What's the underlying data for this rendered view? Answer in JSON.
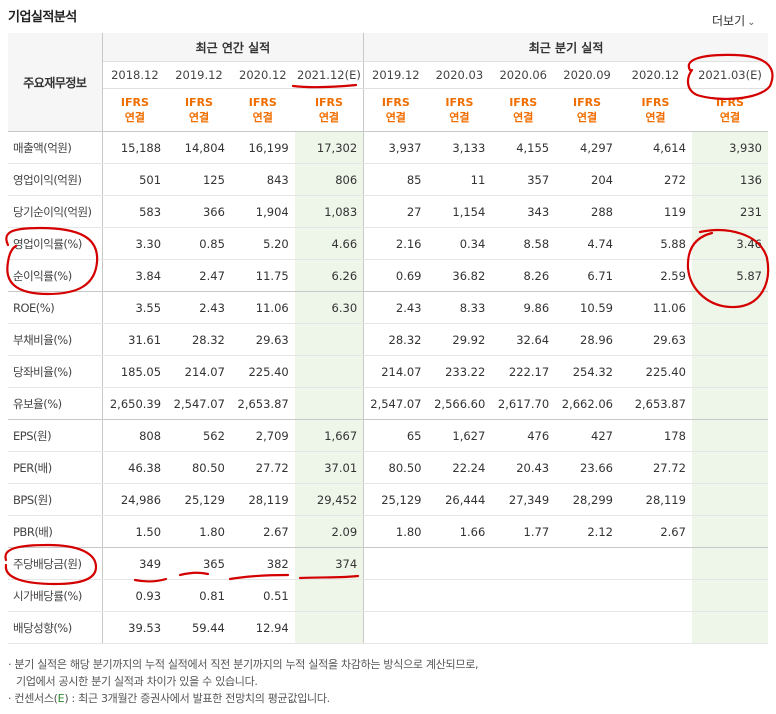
{
  "section_title": "기업실적분석",
  "more_label": "더보기",
  "more_icon": "chevron-down-icon",
  "header": {
    "row_header": "주요재무정보",
    "annual_group": "최근 연간 실적",
    "quarter_group": "최근 분기 실적",
    "annual_periods": [
      "2018.12",
      "2019.12",
      "2020.12",
      "2021.12(E)"
    ],
    "quarter_periods": [
      "2019.12",
      "2020.03",
      "2020.06",
      "2020.09",
      "2020.12",
      "2021.03(E)"
    ],
    "basis_line1": "IFRS",
    "basis_line2": "연결"
  },
  "rows": [
    {
      "label": "매출액(억원)",
      "values": [
        "15,188",
        "14,804",
        "16,199",
        "17,302",
        "3,937",
        "3,133",
        "4,155",
        "4,297",
        "4,614",
        "3,930"
      ]
    },
    {
      "label": "영업이익(억원)",
      "values": [
        "501",
        "125",
        "843",
        "806",
        "85",
        "11",
        "357",
        "204",
        "272",
        "136"
      ]
    },
    {
      "label": "당기순이익(억원)",
      "values": [
        "583",
        "366",
        "1,904",
        "1,083",
        "27",
        "1,154",
        "343",
        "288",
        "119",
        "231"
      ]
    },
    {
      "label": "영업이익률(%)",
      "values": [
        "3.30",
        "0.85",
        "5.20",
        "4.66",
        "2.16",
        "0.34",
        "8.58",
        "4.74",
        "5.88",
        "3.46"
      ]
    },
    {
      "label": "순이익률(%)",
      "values": [
        "3.84",
        "2.47",
        "11.75",
        "6.26",
        "0.69",
        "36.82",
        "8.26",
        "6.71",
        "2.59",
        "5.87"
      ]
    },
    {
      "label": "ROE(%)",
      "values": [
        "3.55",
        "2.43",
        "11.06",
        "6.30",
        "2.43",
        "8.33",
        "9.86",
        "10.59",
        "11.06",
        ""
      ]
    },
    {
      "label": "부채비율(%)",
      "values": [
        "31.61",
        "28.32",
        "29.63",
        "",
        "28.32",
        "29.92",
        "32.64",
        "28.96",
        "29.63",
        ""
      ]
    },
    {
      "label": "당좌비율(%)",
      "values": [
        "185.05",
        "214.07",
        "225.40",
        "",
        "214.07",
        "233.22",
        "222.17",
        "254.32",
        "225.40",
        ""
      ]
    },
    {
      "label": "유보율(%)",
      "values": [
        "2,650.39",
        "2,547.07",
        "2,653.87",
        "",
        "2,547.07",
        "2,566.60",
        "2,617.70",
        "2,662.06",
        "2,653.87",
        ""
      ]
    },
    {
      "label": "EPS(원)",
      "values": [
        "808",
        "562",
        "2,709",
        "1,667",
        "65",
        "1,627",
        "476",
        "427",
        "178",
        ""
      ]
    },
    {
      "label": "PER(배)",
      "values": [
        "46.38",
        "80.50",
        "27.72",
        "37.01",
        "80.50",
        "22.24",
        "20.43",
        "23.66",
        "27.72",
        ""
      ]
    },
    {
      "label": "BPS(원)",
      "values": [
        "24,986",
        "25,129",
        "28,119",
        "29,452",
        "25,129",
        "26,444",
        "27,349",
        "28,299",
        "28,119",
        ""
      ]
    },
    {
      "label": "PBR(배)",
      "values": [
        "1.50",
        "1.80",
        "2.67",
        "2.09",
        "1.80",
        "1.66",
        "1.77",
        "2.12",
        "2.67",
        ""
      ]
    },
    {
      "label": "주당배당금(원)",
      "values": [
        "349",
        "365",
        "382",
        "374",
        "",
        "",
        "",
        "",
        "",
        ""
      ]
    },
    {
      "label": "시가배당률(%)",
      "values": [
        "0.93",
        "0.81",
        "0.51",
        "",
        "",
        "",
        "",
        "",
        "",
        ""
      ]
    },
    {
      "label": "배당성향(%)",
      "values": [
        "39.53",
        "59.44",
        "12.94",
        "",
        "",
        "",
        "",
        "",
        "",
        ""
      ]
    }
  ],
  "notes": {
    "line1": "· 분기 실적은 해당 분기까지의 누적 실적에서 직전 분기까지의 누적 실적을 차감하는 방식으로 계산되므로,",
    "line2": "기업에서 공시한 분기 실적과 차이가 있을 수 있습니다.",
    "line3_prefix": "· 컨센서스(",
    "line3_e": "E",
    "line3_suffix": ") : 최근 3개월간 증권사에서 발표한 전망치의 평균값입니다."
  },
  "annotation_color": "#d40000",
  "estimate_bg": "#eef6ea",
  "ifrs_color": "#f06e00"
}
